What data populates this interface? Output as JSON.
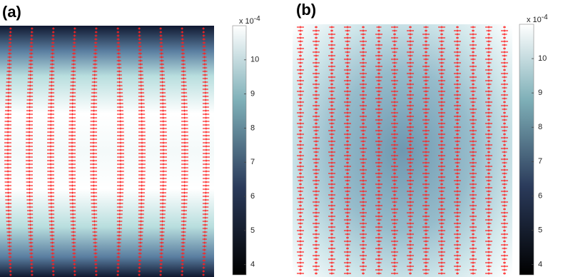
{
  "chart_data": [
    {
      "type": "heatmap",
      "title": "(a)",
      "clim": [
        3.7,
        11.0
      ],
      "cticks": [
        4,
        5,
        6,
        7,
        8,
        9,
        10
      ],
      "cbar_label": "x 10",
      "cbar_exponent": "-4",
      "arrow_color": "#ff2020"
    },
    {
      "type": "heatmap",
      "title": "(b)",
      "clim": [
        3.7,
        11.0
      ],
      "cticks": [
        4,
        5,
        6,
        7,
        8,
        9,
        10
      ],
      "cbar_label": "x 10",
      "cbar_exponent": "-4",
      "arrow_color": "#ff2020"
    }
  ]
}
